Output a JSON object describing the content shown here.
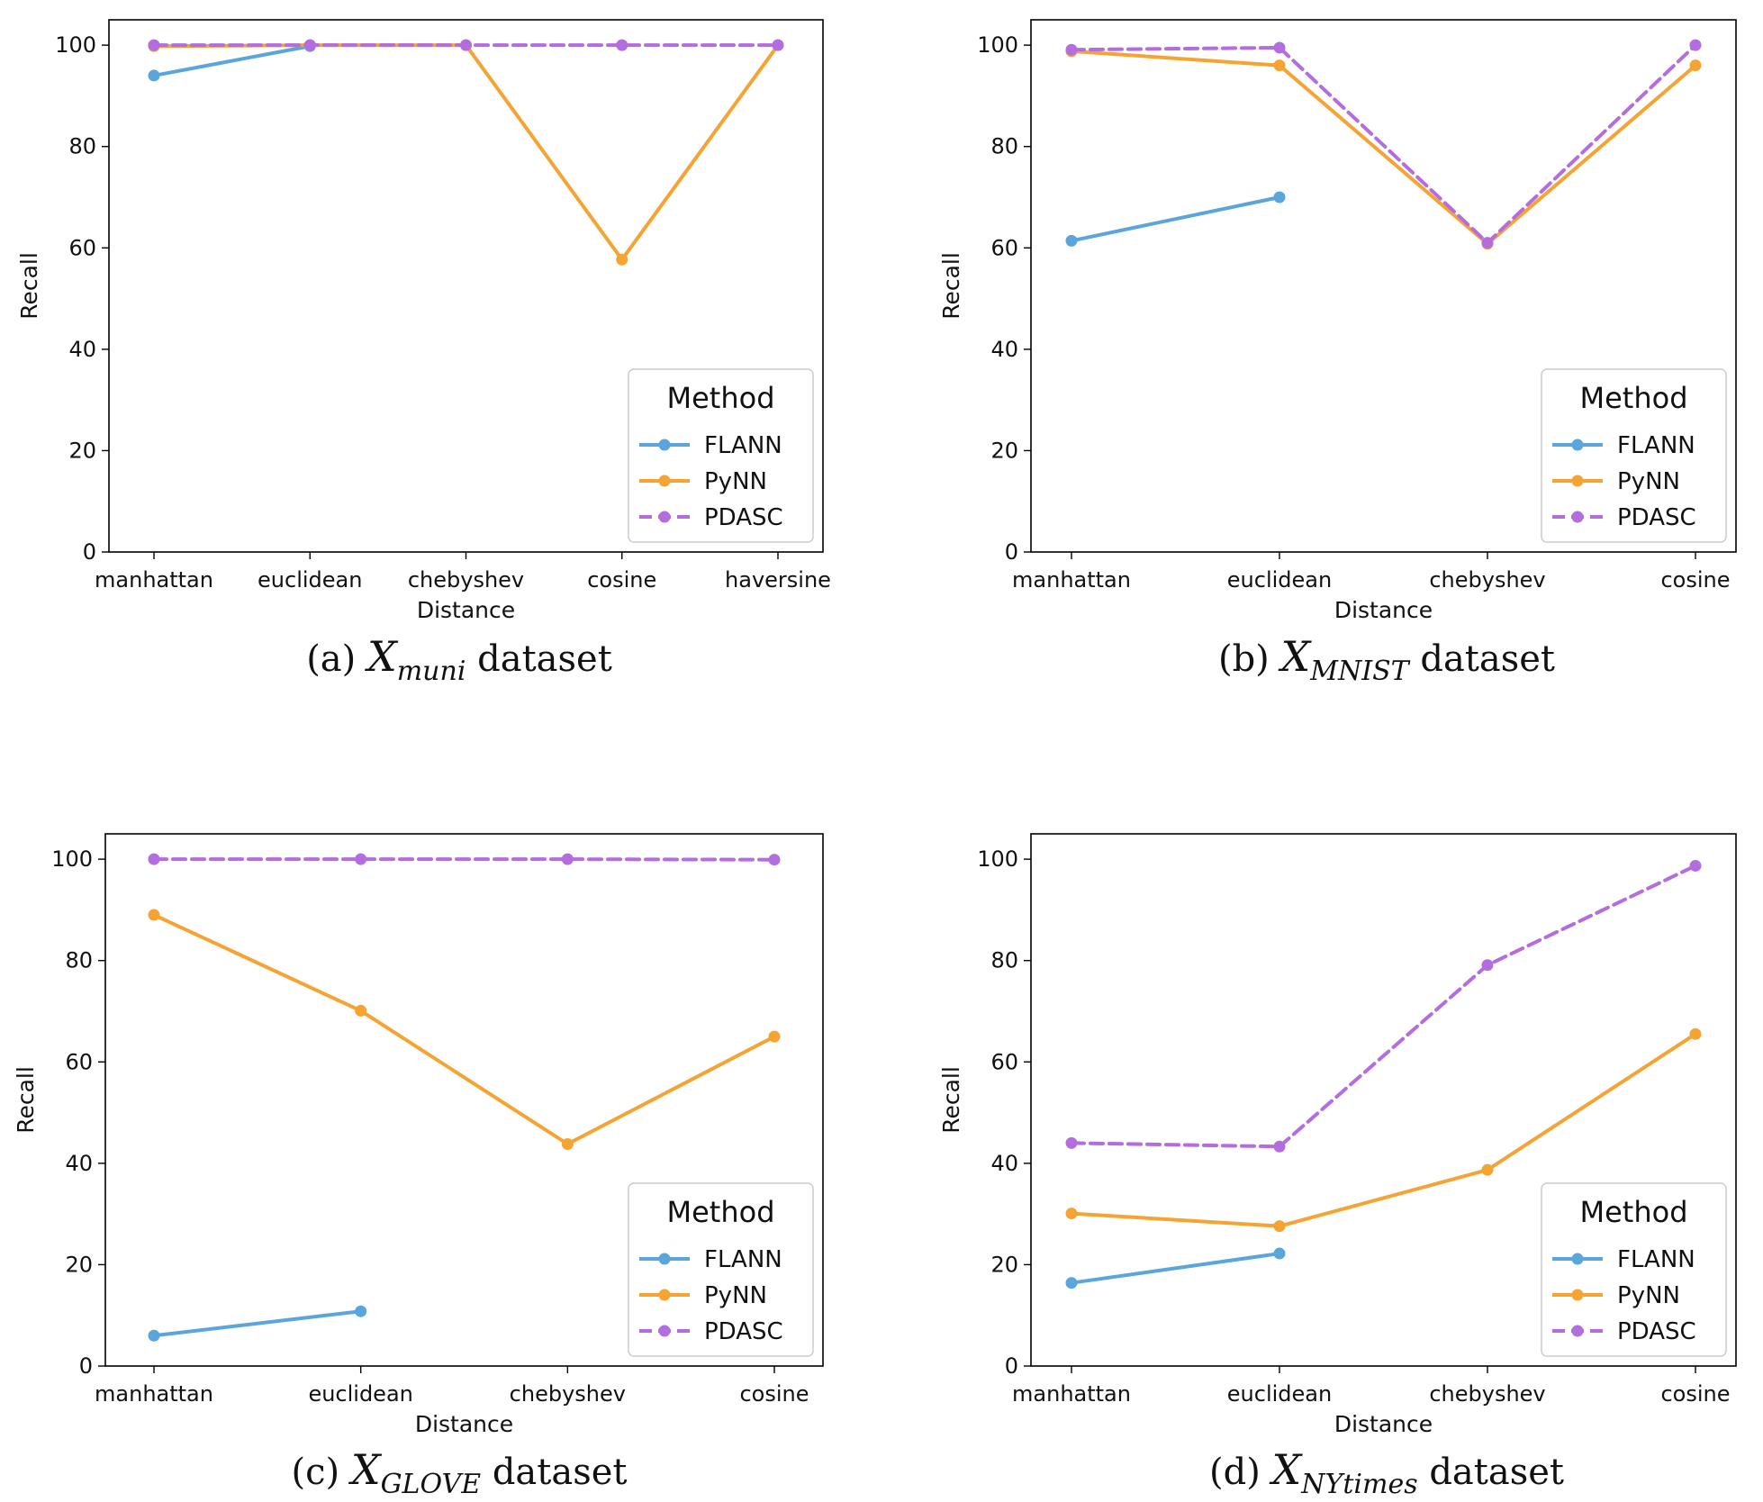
{
  "colors": {
    "FLANN": "#5aa5dc",
    "PyNN": "#f5a433",
    "PDASC": "#b46ddf"
  },
  "chart_data": [
    {
      "type": "line",
      "caption": {
        "prefix": "(a) ",
        "symbol": "X",
        "subscript": "muni",
        "suffix": " dataset"
      },
      "xlabel": "Distance",
      "ylabel": "Recall",
      "ylim": [
        0,
        105
      ],
      "yticks": [
        0,
        20,
        40,
        60,
        80,
        100
      ],
      "categories": [
        "manhattan",
        "euclidean",
        "chebyshev",
        "cosine",
        "haversine"
      ],
      "legend": {
        "title": "Method",
        "position": "lower-right"
      },
      "series": [
        {
          "name": "FLANN",
          "style": "solid",
          "values": [
            94,
            99.8,
            null,
            null,
            null
          ]
        },
        {
          "name": "PyNN",
          "style": "solid",
          "values": [
            99.8,
            100,
            100,
            57.7,
            100
          ]
        },
        {
          "name": "PDASC",
          "style": "dashed",
          "values": [
            100,
            100,
            100,
            100,
            100
          ]
        }
      ]
    },
    {
      "type": "line",
      "caption": {
        "prefix": "(b) ",
        "symbol": "X",
        "subscript": "MNIST",
        "suffix": " dataset"
      },
      "xlabel": "Distance",
      "ylabel": "Recall",
      "ylim": [
        0,
        105
      ],
      "yticks": [
        0,
        20,
        40,
        60,
        80,
        100
      ],
      "categories": [
        "manhattan",
        "euclidean",
        "chebyshev",
        "cosine"
      ],
      "legend": {
        "title": "Method",
        "position": "lower-right"
      },
      "series": [
        {
          "name": "FLANN",
          "style": "solid",
          "values": [
            61.4,
            70,
            null,
            null
          ]
        },
        {
          "name": "PyNN",
          "style": "solid",
          "values": [
            98.8,
            96,
            60.8,
            96
          ]
        },
        {
          "name": "PDASC",
          "style": "dashed",
          "values": [
            99.1,
            99.5,
            61,
            100
          ]
        }
      ]
    },
    {
      "type": "line",
      "caption": {
        "prefix": "(c) ",
        "symbol": "X",
        "subscript": "GLOVE",
        "suffix": " dataset"
      },
      "xlabel": "Distance",
      "ylabel": "Recall",
      "ylim": [
        0,
        105
      ],
      "yticks": [
        0,
        20,
        40,
        60,
        80,
        100
      ],
      "categories": [
        "manhattan",
        "euclidean",
        "chebyshev",
        "cosine"
      ],
      "legend": {
        "title": "Method",
        "position": "lower-right"
      },
      "series": [
        {
          "name": "FLANN",
          "style": "solid",
          "values": [
            6,
            10.8,
            null,
            null
          ]
        },
        {
          "name": "PyNN",
          "style": "solid",
          "values": [
            89,
            70.1,
            43.8,
            65
          ]
        },
        {
          "name": "PDASC",
          "style": "dashed",
          "values": [
            100,
            100,
            100,
            99.9
          ]
        }
      ]
    },
    {
      "type": "line",
      "caption": {
        "prefix": "(d) ",
        "symbol": "X",
        "subscript": "NYtimes",
        "suffix": " dataset"
      },
      "xlabel": "Distance",
      "ylabel": "Recall",
      "ylim": [
        0,
        105
      ],
      "yticks": [
        0,
        20,
        40,
        60,
        80,
        100
      ],
      "categories": [
        "manhattan",
        "euclidean",
        "chebyshev",
        "cosine"
      ],
      "legend": {
        "title": "Method",
        "position": "lower-right"
      },
      "series": [
        {
          "name": "FLANN",
          "style": "solid",
          "values": [
            16.4,
            22.2,
            null,
            null
          ]
        },
        {
          "name": "PyNN",
          "style": "solid",
          "values": [
            30.1,
            27.6,
            38.7,
            65.5
          ]
        },
        {
          "name": "PDASC",
          "style": "dashed",
          "values": [
            44,
            43.3,
            79.1,
            98.7
          ]
        }
      ]
    }
  ]
}
